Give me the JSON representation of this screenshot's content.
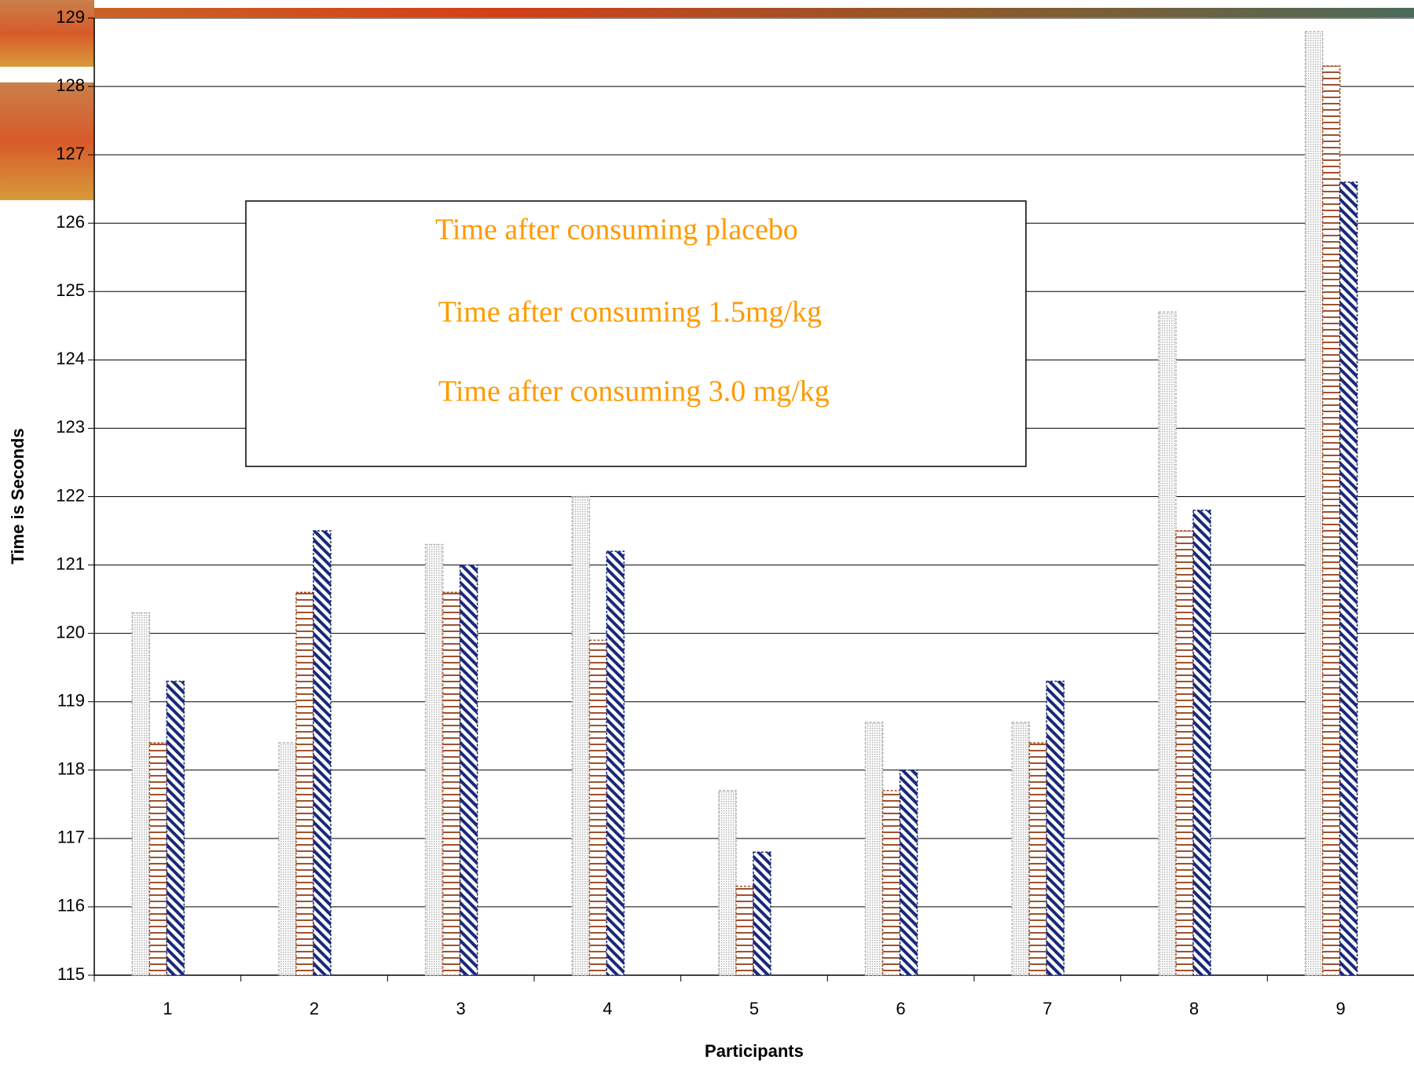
{
  "chart_data": {
    "type": "bar",
    "x_label": "Participants",
    "y_label": "Time is Seconds",
    "categories": [
      "1",
      "2",
      "3",
      "4",
      "5",
      "6",
      "7",
      "8",
      "9"
    ],
    "series": [
      {
        "name": "Time after consuming placebo",
        "color": "#b0b0b0",
        "values": [
          120.3,
          118.4,
          121.3,
          122.0,
          117.7,
          118.7,
          118.7,
          124.7,
          128.8
        ]
      },
      {
        "name": "Time after consuming 1.5mg/kg",
        "color": "#a0522d",
        "values": [
          118.4,
          120.6,
          120.6,
          119.9,
          116.3,
          117.7,
          118.4,
          121.5,
          128.3
        ]
      },
      {
        "name": "Time after consuming 3.0 mg/kg",
        "color": "#1a2a7a",
        "values": [
          119.3,
          121.5,
          121.0,
          121.2,
          116.8,
          118.0,
          119.3,
          121.8,
          126.6
        ]
      }
    ],
    "ylim": [
      115,
      129
    ],
    "yticks": [
      115,
      116,
      117,
      118,
      119,
      120,
      121,
      122,
      123,
      124,
      125,
      126,
      127,
      128,
      129
    ],
    "grid": true
  }
}
